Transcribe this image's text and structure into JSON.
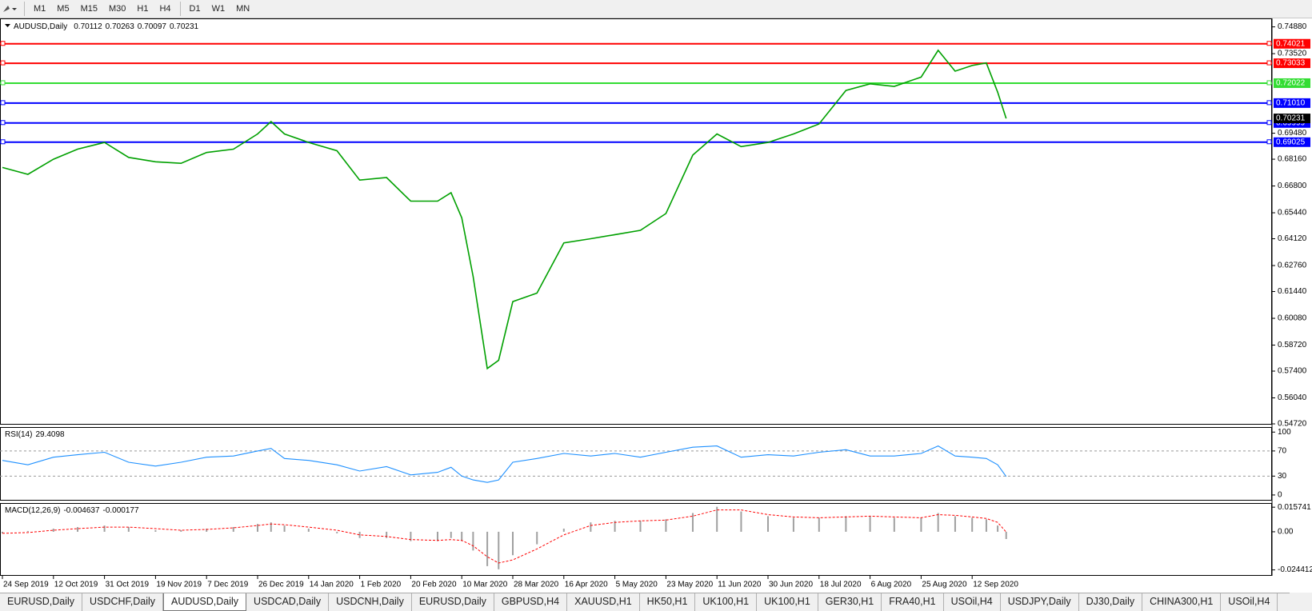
{
  "toolbar": {
    "timeframes": [
      "M1",
      "M5",
      "M15",
      "M30",
      "H1",
      "H4",
      "D1",
      "W1",
      "MN"
    ]
  },
  "chart_data": [
    {
      "type": "line",
      "title": "AUDUSD,Daily",
      "ohlc": [
        0.70112,
        0.70263,
        0.70097,
        0.70231
      ],
      "color": "#00a000",
      "x": [
        "24 Sep 2019",
        "3 Oct 2019",
        "12 Oct 2019",
        "21 Oct 2019",
        "31 Oct 2019",
        "9 Nov 2019",
        "19 Nov 2019",
        "28 Nov 2019",
        "7 Dec 2019",
        "17 Dec 2019",
        "26 Dec 2019",
        "31 Dec 2019",
        "5 Jan 2020",
        "14 Jan 2020",
        "24 Jan 2020",
        "1 Feb 2020",
        "11 Feb 2020",
        "20 Feb 2020",
        "1 Mar 2020",
        "6 Mar 2020",
        "10 Mar 2020",
        "14 Mar 2020",
        "19 Mar 2020",
        "23 Mar 2020",
        "28 Mar 2020",
        "6 Apr 2020",
        "16 Apr 2020",
        "26 Apr 2020",
        "5 May 2020",
        "14 May 2020",
        "23 May 2020",
        "2 Jun 2020",
        "11 Jun 2020",
        "20 Jun 2020",
        "30 Jun 2020",
        "9 Jul 2020",
        "18 Jul 2020",
        "28 Jul 2020",
        "6 Aug 2020",
        "15 Aug 2020",
        "25 Aug 2020",
        "31 Aug 2020",
        "6 Sep 2020",
        "12 Sep 2020",
        "17 Sep 2020",
        "21 Sep 2020",
        "24 Sep 2020"
      ],
      "values": [
        0.6774,
        0.6739,
        0.6816,
        0.6867,
        0.6901,
        0.6825,
        0.6803,
        0.6795,
        0.685,
        0.6867,
        0.6944,
        0.7007,
        0.6944,
        0.6901,
        0.6859,
        0.671,
        0.6723,
        0.6603,
        0.6603,
        0.6646,
        0.6518,
        0.6221,
        0.5753,
        0.5795,
        0.6093,
        0.6136,
        0.6391,
        0.6412,
        0.6433,
        0.6455,
        0.654,
        0.6837,
        0.6944,
        0.688,
        0.6901,
        0.6944,
        0.6995,
        0.7165,
        0.7199,
        0.7186,
        0.7233,
        0.7369,
        0.7263,
        0.7292,
        0.7305,
        0.7156,
        0.70231
      ],
      "xticks": [
        "24 Sep 2019",
        "12 Oct 2019",
        "31 Oct 2019",
        "19 Nov 2019",
        "7 Dec 2019",
        "26 Dec 2019",
        "14 Jan 2020",
        "1 Feb 2020",
        "20 Feb 2020",
        "10 Mar 2020",
        "28 Mar 2020",
        "16 Apr 2020",
        "5 May 2020",
        "23 May 2020",
        "11 Jun 2020",
        "30 Jun 2020",
        "18 Jul 2020",
        "6 Aug 2020",
        "25 Aug 2020",
        "12 Sep 2020"
      ],
      "ylim": [
        0.5468,
        0.7531
      ],
      "yticks": [
        {
          "value": 0.7488,
          "label": "0.74880"
        },
        {
          "value": 0.7352,
          "label": "0.73520"
        },
        {
          "value": 0.6948,
          "label": "0.69480"
        },
        {
          "value": 0.6816,
          "label": "0.68160"
        },
        {
          "value": 0.668,
          "label": "0.66800"
        },
        {
          "value": 0.6544,
          "label": "0.65440"
        },
        {
          "value": 0.6412,
          "label": "0.64120"
        },
        {
          "value": 0.6276,
          "label": "0.62760"
        },
        {
          "value": 0.6144,
          "label": "0.61440"
        },
        {
          "value": 0.6008,
          "label": "0.60080"
        },
        {
          "value": 0.5872,
          "label": "0.58720"
        },
        {
          "value": 0.574,
          "label": "0.57400"
        },
        {
          "value": 0.5604,
          "label": "0.56040"
        },
        {
          "value": 0.5472,
          "label": "0.54720"
        }
      ],
      "levels": [
        {
          "value": 0.74021,
          "color": "#ff0000"
        },
        {
          "value": 0.73033,
          "color": "#ff0000"
        },
        {
          "value": 0.72022,
          "color": "#33dd33"
        },
        {
          "value": 0.7101,
          "label": "0.71010",
          "color": "#0000ff"
        },
        {
          "value": 0.69999,
          "color": "#0000ff"
        },
        {
          "value": 0.69025,
          "color": "#0000ff"
        }
      ]
    },
    {
      "type": "line",
      "title": "RSI(14)",
      "color": "#1e90ff",
      "values": [
        55,
        48,
        60,
        64,
        68,
        52,
        46,
        52,
        60,
        62,
        70,
        74,
        58,
        55,
        48,
        38,
        45,
        32,
        36,
        44,
        30,
        24,
        20,
        24,
        52,
        58,
        66,
        62,
        66,
        60,
        68,
        76,
        78,
        60,
        64,
        62,
        68,
        72,
        62,
        62,
        66,
        78,
        62,
        60,
        58,
        48,
        29.4098
      ],
      "ylim": [
        -9,
        108
      ],
      "yticks": [
        0,
        30,
        70,
        100
      ],
      "levels": [
        30,
        70
      ]
    },
    {
      "type": "macd",
      "title": "MACD(12,26,9)",
      "color": "#a0a0a0",
      "signal_color": "#ff0000",
      "values": [
        -0.001,
        0.0005,
        0.002,
        0.003,
        0.004,
        0.003,
        0.001,
        0.001,
        0.002,
        0.003,
        0.005,
        0.006,
        0.004,
        0.002,
        -0.001,
        -0.004,
        -0.004,
        -0.006,
        -0.006,
        -0.004,
        -0.006,
        -0.012,
        -0.022,
        -0.024,
        -0.015,
        -0.008,
        0.002,
        0.006,
        0.007,
        0.007,
        0.008,
        0.012,
        0.016,
        0.013,
        0.01,
        0.009,
        0.009,
        0.01,
        0.01,
        0.009,
        0.009,
        0.012,
        0.01,
        0.009,
        0.008,
        0.004,
        -0.004637
      ],
      "signal": [
        -0.001,
        -0.0005,
        0.001,
        0.002,
        0.003,
        0.003,
        0.002,
        0.001,
        0.0015,
        0.0025,
        0.004,
        0.005,
        0.0045,
        0.003,
        0.001,
        -0.002,
        -0.003,
        -0.005,
        -0.0055,
        -0.005,
        -0.0055,
        -0.009,
        -0.016,
        -0.02,
        -0.018,
        -0.011,
        -0.002,
        0.004,
        0.006,
        0.007,
        0.0075,
        0.01,
        0.014,
        0.014,
        0.011,
        0.0095,
        0.009,
        0.0095,
        0.01,
        0.0095,
        0.009,
        0.011,
        0.0105,
        0.0095,
        0.0085,
        0.006,
        -0.000177
      ],
      "ylim": [
        -0.0282,
        0.0184
      ],
      "yticks": [
        0.015741,
        {
          "value": 0,
          "label": "0.00"
        },
        -0.024412
      ]
    }
  ],
  "tabs": [
    "EURUSD,Daily",
    "USDCHF,Daily",
    "AUDUSD,Daily",
    "USDCAD,Daily",
    "USDCNH,Daily",
    "EURUSD,Daily",
    "GBPUSD,H4",
    "XAUUSD,H1",
    "HK50,H1",
    "UK100,H1",
    "UK100,H1",
    "GER30,H1",
    "FRA40,H1",
    "USOil,H4",
    "USDJPY,Daily",
    "DJ30,Daily",
    "CHINA300,H1",
    "USOil,H4"
  ],
  "active_tab": 2
}
